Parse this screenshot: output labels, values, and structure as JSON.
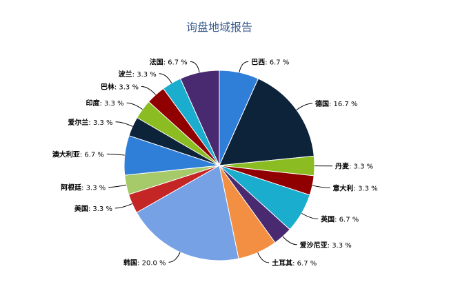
{
  "chart_data": {
    "type": "pie",
    "title": "询盘地域报告",
    "slices": [
      {
        "name": "巴西",
        "value": 6.7,
        "label": "6.7 %",
        "color": "#2f7ed8"
      },
      {
        "name": "德国",
        "value": 16.7,
        "label": "16.7 %",
        "color": "#0d233a"
      },
      {
        "name": "丹麦",
        "value": 3.3,
        "label": "3.3 %",
        "color": "#8bbc21"
      },
      {
        "name": "意大利",
        "value": 3.3,
        "label": "3.3 %",
        "color": "#910000"
      },
      {
        "name": "英国",
        "value": 6.7,
        "label": "6.7 %",
        "color": "#1aadce"
      },
      {
        "name": "爱沙尼亚",
        "value": 3.3,
        "label": "3.3 %",
        "color": "#492970"
      },
      {
        "name": "土耳其",
        "value": 6.7,
        "label": "6.7 %",
        "color": "#f28f43"
      },
      {
        "name": "韩国",
        "value": 20.0,
        "label": "20.0 %",
        "color": "#77a1e5"
      },
      {
        "name": "美国",
        "value": 3.3,
        "label": "3.3 %",
        "color": "#c42525"
      },
      {
        "name": "阿根廷",
        "value": 3.3,
        "label": "3.3 %",
        "color": "#a6c96a"
      },
      {
        "name": "澳大利亚",
        "value": 6.7,
        "label": "6.7 %",
        "color": "#2f7ed8"
      },
      {
        "name": "爱尔兰",
        "value": 3.3,
        "label": "3.3 %",
        "color": "#0d233a"
      },
      {
        "name": "印度",
        "value": 3.3,
        "label": "3.3 %",
        "color": "#8bbc21"
      },
      {
        "name": "巴林",
        "value": 3.3,
        "label": "3.3 %",
        "color": "#910000"
      },
      {
        "name": "波兰",
        "value": 3.3,
        "label": "3.3 %",
        "color": "#1aadce"
      },
      {
        "name": "法国",
        "value": 6.7,
        "label": "6.7 %",
        "color": "#492970"
      }
    ]
  }
}
